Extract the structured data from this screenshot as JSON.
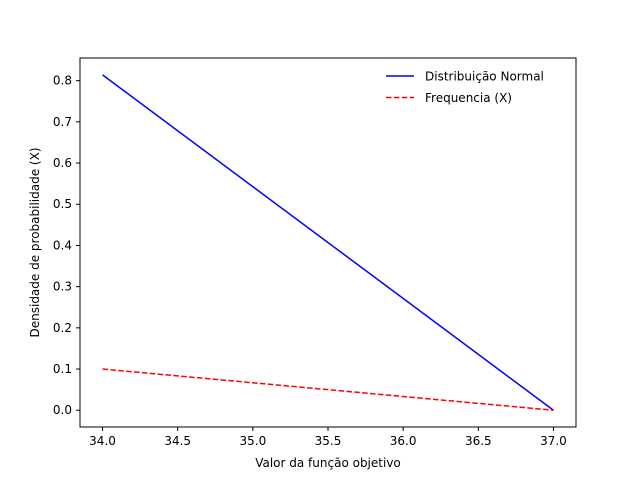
{
  "chart_data": {
    "type": "line",
    "title": "",
    "xlabel": "Valor da função objetivo",
    "ylabel": "Densidade de probabilidade (X)",
    "xlim": [
      33.85,
      37.15
    ],
    "ylim": [
      -0.0407,
      0.855
    ],
    "xticks": [
      34.0,
      34.5,
      35.0,
      35.5,
      36.0,
      36.5,
      37.0
    ],
    "xtick_labels": [
      "34.0",
      "34.5",
      "35.0",
      "35.5",
      "36.0",
      "36.5",
      "37.0"
    ],
    "yticks": [
      0.0,
      0.1,
      0.2,
      0.3,
      0.4,
      0.5,
      0.6,
      0.7,
      0.8
    ],
    "ytick_labels": [
      "0.0",
      "0.1",
      "0.2",
      "0.3",
      "0.4",
      "0.5",
      "0.6",
      "0.7",
      "0.8"
    ],
    "grid": false,
    "legend_position": "top-right",
    "series": [
      {
        "name": "Distribuição Normal",
        "x": [
          34.0,
          37.0
        ],
        "y": [
          0.814,
          0.0
        ],
        "color": "#0000ff",
        "style": "solid"
      },
      {
        "name": "Frequencia (X)",
        "x": [
          34.0,
          37.0
        ],
        "y": [
          0.1,
          0.0
        ],
        "color": "#ff0000",
        "style": "dashed"
      }
    ]
  }
}
